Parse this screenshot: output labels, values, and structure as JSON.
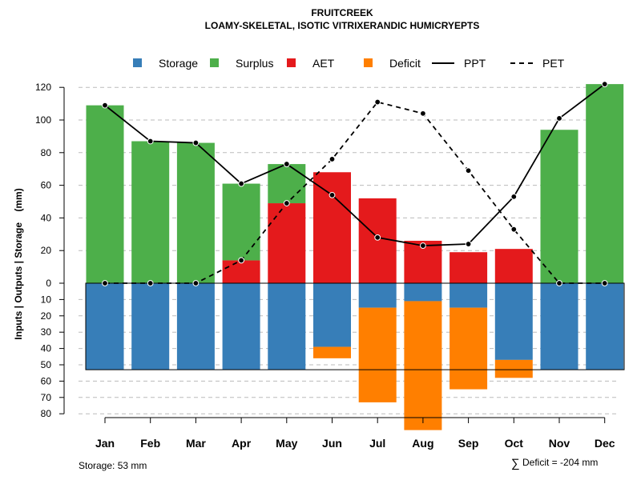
{
  "chart_data": {
    "type": "bar",
    "title": "FRUITCREEK",
    "subtitle": "LOAMY-SKELETAL, ISOTIC VITRIXERANDIC HUMICRYEPTS",
    "ylabel": "Inputs | Outputs | Storage    (mm)",
    "categories": [
      "Jan",
      "Feb",
      "Mar",
      "Apr",
      "May",
      "Jun",
      "Jul",
      "Aug",
      "Sep",
      "Oct",
      "Nov",
      "Dec"
    ],
    "upper_ylim": [
      0,
      125
    ],
    "upper_ticks": [
      0,
      20,
      40,
      60,
      80,
      100,
      120
    ],
    "lower_ylim": [
      0,
      80
    ],
    "lower_ticks": [
      10,
      20,
      30,
      40,
      50,
      60,
      70,
      80
    ],
    "storage_capacity": 53,
    "legend": [
      {
        "key": "storage",
        "label": "Storage",
        "color": "#377EB8",
        "kind": "square"
      },
      {
        "key": "surplus",
        "label": "Surplus",
        "color": "#4DAF4A",
        "kind": "square"
      },
      {
        "key": "aet",
        "label": "AET",
        "color": "#E41A1C",
        "kind": "square"
      },
      {
        "key": "deficit",
        "label": "Deficit",
        "color": "#FF7F00",
        "kind": "square"
      },
      {
        "key": "ppt",
        "label": "PPT",
        "color": "#000000",
        "kind": "solid-line"
      },
      {
        "key": "pet",
        "label": "PET",
        "color": "#000000",
        "kind": "dashed-line"
      }
    ],
    "series": [
      {
        "name": "AET",
        "values": [
          0,
          0,
          0,
          14,
          49,
          68,
          52,
          26,
          19,
          21,
          0,
          0
        ]
      },
      {
        "name": "Surplus",
        "values": [
          109,
          87,
          86,
          47,
          24,
          0,
          0,
          0,
          0,
          0,
          94,
          122
        ]
      },
      {
        "name": "Storage",
        "values": [
          53,
          53,
          53,
          53,
          53,
          39,
          15,
          11,
          15,
          47,
          53,
          53
        ]
      },
      {
        "name": "Deficit",
        "values": [
          0,
          0,
          0,
          0,
          0,
          7,
          58,
          79,
          50,
          11,
          0,
          0
        ]
      },
      {
        "name": "PPT",
        "values": [
          109,
          87,
          86,
          61,
          73,
          54,
          28,
          23,
          24,
          53,
          101,
          122
        ]
      },
      {
        "name": "PET",
        "values": [
          0,
          0,
          0,
          14,
          49,
          76,
          111,
          104,
          69,
          33,
          0,
          0
        ]
      }
    ],
    "footer_storage": "Storage: 53 mm",
    "footer_deficit_symbol": "∑",
    "footer_deficit": "Deficit = -204 mm"
  }
}
